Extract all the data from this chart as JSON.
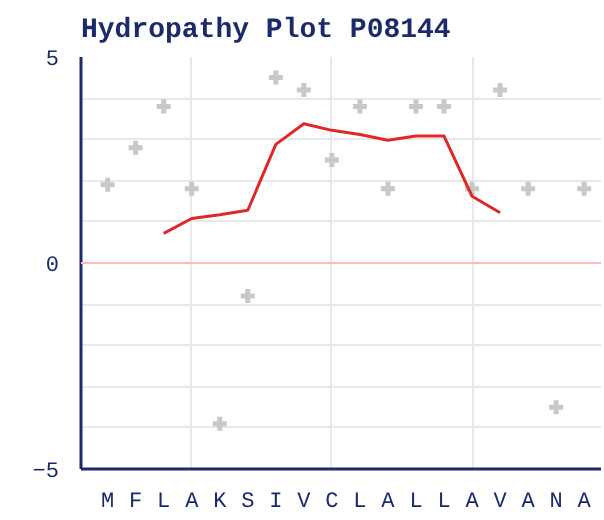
{
  "chart_data": {
    "type": "scatter",
    "title": "Hydropathy Plot P08144",
    "categories": [
      "M",
      "F",
      "L",
      "A",
      "K",
      "S",
      "I",
      "V",
      "C",
      "L",
      "A",
      "L",
      "L",
      "A",
      "V",
      "A",
      "N",
      "A"
    ],
    "series": [
      {
        "color": "#c8c8c8",
        "marker": "cross",
        "values": [
          1.9,
          2.8,
          3.8,
          1.8,
          -3.9,
          -0.8,
          4.5,
          4.2,
          2.5,
          3.8,
          1.8,
          3.8,
          3.8,
          1.8,
          4.2,
          1.8,
          -3.5,
          1.8
        ]
      },
      {
        "type": "line",
        "color": "#e02828",
        "line_style": "solid",
        "values": [
          null,
          null,
          0.72,
          1.08,
          1.17,
          1.28,
          2.88,
          3.38,
          3.22,
          3.12,
          2.98,
          3.08,
          3.08,
          1.62,
          1.22,
          null,
          null,
          null
        ]
      }
    ],
    "ylim": [
      -5,
      5
    ],
    "yticks": [
      -5,
      {
        "value": -4,
        "label": null
      },
      {
        "value": -3,
        "label": null
      },
      {
        "value": -2,
        "label": null
      },
      {
        "value": -1,
        "label": null
      },
      0,
      {
        "value": 1,
        "label": null
      },
      {
        "value": 2,
        "label": null
      },
      {
        "value": 3,
        "label": null
      },
      {
        "value": 4,
        "label": null
      },
      5
    ],
    "ref_lines": [
      {
        "axis": "y",
        "value": 0,
        "color": "#ffbbbb"
      }
    ],
    "grid": true
  }
}
